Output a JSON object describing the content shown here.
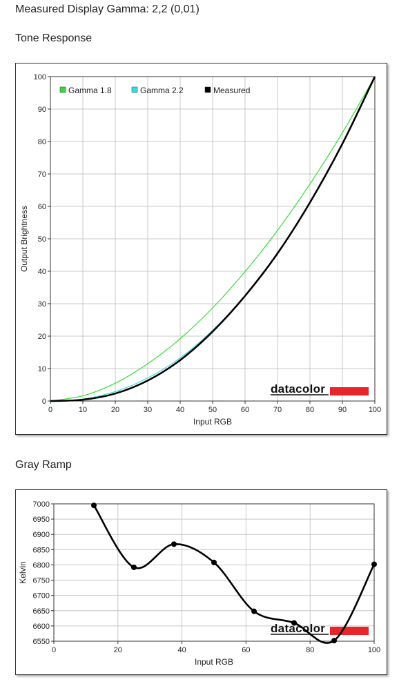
{
  "summary": {
    "label": "Measured Display Gamma:",
    "value": "2,2 (0,01)"
  },
  "tone_response": {
    "heading": "Tone Response",
    "logo_text": "datacolor"
  },
  "gray_ramp": {
    "heading": "Gray Ramp",
    "logo_text": "datacolor"
  },
  "colors": {
    "gamma18": "#33dd33",
    "gamma22": "#33dddd",
    "measured": "#000000",
    "grid": "#c8c8c8",
    "logo_bar": "#e8252b"
  },
  "chart_data": [
    {
      "type": "line",
      "title": "Tone Response",
      "xlabel": "Input RGB",
      "ylabel": "Output Brightness",
      "xlim": [
        0,
        100
      ],
      "ylim": [
        0,
        100
      ],
      "xticks": [
        0,
        10,
        20,
        30,
        40,
        50,
        60,
        70,
        80,
        90,
        100
      ],
      "yticks": [
        0,
        10,
        20,
        30,
        40,
        50,
        60,
        70,
        80,
        90,
        100
      ],
      "grid": true,
      "legend": "top-left",
      "series": [
        {
          "name": "Gamma 1.8",
          "color": "#33dd33",
          "x": [
            0,
            10,
            20,
            30,
            40,
            50,
            60,
            70,
            80,
            90,
            100
          ],
          "y": [
            0,
            1.6,
            5.5,
            11.5,
            19.2,
            28.7,
            39.9,
            52.6,
            66.9,
            82.7,
            100
          ]
        },
        {
          "name": "Gamma 2.2",
          "color": "#33dddd",
          "x": [
            0,
            10,
            20,
            30,
            40,
            50,
            60,
            70,
            80,
            90,
            100
          ],
          "y": [
            0,
            0.6,
            2.9,
            7.1,
            13.3,
            21.8,
            32.5,
            45.6,
            61.2,
            79.3,
            100
          ]
        },
        {
          "name": "Measured",
          "color": "#000000",
          "x": [
            0,
            10,
            20,
            30,
            40,
            50,
            60,
            70,
            80,
            90,
            100
          ],
          "y": [
            0,
            0.4,
            2.3,
            6.3,
            12.6,
            21.4,
            32.4,
            45.5,
            61.2,
            79.3,
            100
          ]
        }
      ]
    },
    {
      "type": "line",
      "title": "Gray Ramp",
      "xlabel": "Input RGB",
      "ylabel": "Kelvin",
      "xlim": [
        0,
        100
      ],
      "ylim": [
        6550,
        7000
      ],
      "xticks": [
        0,
        20,
        40,
        60,
        80,
        100
      ],
      "yticks": [
        6550,
        6600,
        6650,
        6700,
        6750,
        6800,
        6850,
        6900,
        6950,
        7000
      ],
      "grid": true,
      "series": [
        {
          "color": "#000000",
          "x": [
            12.5,
            25,
            37.5,
            50,
            62.5,
            75,
            87.5,
            100
          ],
          "y": [
            6995,
            6792,
            6868,
            6808,
            6648,
            6610,
            6552,
            6802
          ]
        }
      ]
    }
  ]
}
